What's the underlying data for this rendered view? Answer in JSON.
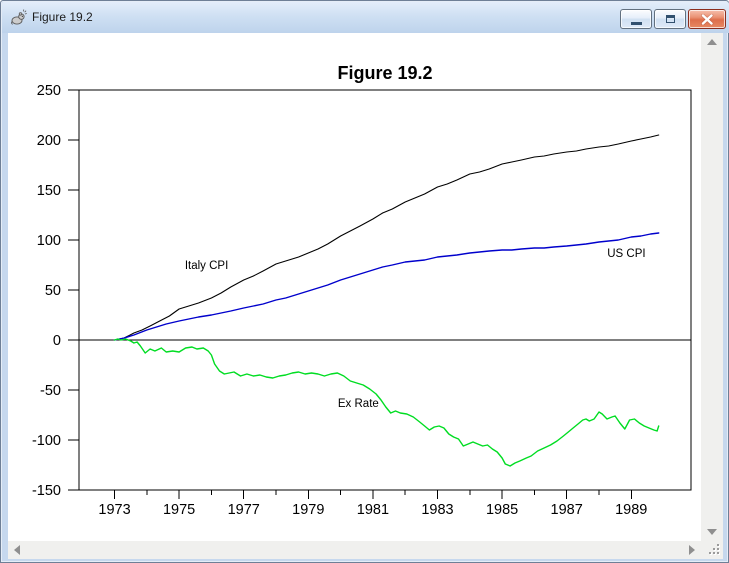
{
  "window": {
    "title": "Figure 19.2"
  },
  "icons": {
    "app": "rat-icon",
    "minimize": "minimize-dash",
    "restore": "restore-window-square",
    "close": "close-x",
    "scroll_up": "triangle-up",
    "scroll_down": "triangle-down",
    "scroll_left": "triangle-left",
    "scroll_right": "triangle-right",
    "resize_grip": "diagonal-dots"
  },
  "chart_data": {
    "type": "line",
    "title": "Figure 19.2",
    "xlim": [
      1971.9,
      1990.85
    ],
    "ylim": [
      -150,
      250
    ],
    "grid": false,
    "zero_line": true,
    "legend": "inline-labels",
    "x_axis": {
      "major_years": [
        1973,
        1975,
        1977,
        1979,
        1981,
        1983,
        1985,
        1987,
        1989
      ],
      "minor_years": [
        1974,
        1976,
        1978,
        1980,
        1982,
        1984,
        1986,
        1988
      ]
    },
    "y_axis": {
      "ticks": [
        250,
        200,
        150,
        100,
        50,
        0,
        -50,
        -100,
        -150
      ]
    },
    "series": [
      {
        "name": "Italy CPI",
        "color": "#000000",
        "width": 1.1,
        "label": {
          "x": 1975.85,
          "y": 71
        },
        "points": [
          [
            1973.0,
            0
          ],
          [
            1973.3,
            2
          ],
          [
            1973.6,
            7
          ],
          [
            1973.85,
            10
          ],
          [
            1974.1,
            14
          ],
          [
            1974.4,
            19
          ],
          [
            1974.7,
            24
          ],
          [
            1975.0,
            31
          ],
          [
            1975.3,
            34
          ],
          [
            1975.6,
            37
          ],
          [
            1976.0,
            42
          ],
          [
            1976.3,
            47
          ],
          [
            1976.6,
            53
          ],
          [
            1977.0,
            60
          ],
          [
            1977.3,
            64
          ],
          [
            1977.6,
            69
          ],
          [
            1978.0,
            76
          ],
          [
            1978.4,
            80
          ],
          [
            1978.7,
            83
          ],
          [
            1979.0,
            87
          ],
          [
            1979.3,
            91
          ],
          [
            1979.6,
            96
          ],
          [
            1980.0,
            104
          ],
          [
            1980.3,
            109
          ],
          [
            1980.6,
            114
          ],
          [
            1981.0,
            121
          ],
          [
            1981.3,
            127
          ],
          [
            1981.6,
            131
          ],
          [
            1982.0,
            138
          ],
          [
            1982.3,
            142
          ],
          [
            1982.6,
            146
          ],
          [
            1983.0,
            153
          ],
          [
            1983.3,
            156
          ],
          [
            1983.6,
            160
          ],
          [
            1984.0,
            166
          ],
          [
            1984.3,
            168
          ],
          [
            1984.6,
            171
          ],
          [
            1985.0,
            176
          ],
          [
            1985.3,
            178
          ],
          [
            1985.6,
            180
          ],
          [
            1986.0,
            183
          ],
          [
            1986.3,
            184
          ],
          [
            1986.6,
            186
          ],
          [
            1987.0,
            188
          ],
          [
            1987.3,
            189
          ],
          [
            1987.6,
            191
          ],
          [
            1988.0,
            193
          ],
          [
            1988.3,
            194
          ],
          [
            1988.6,
            196
          ],
          [
            1989.0,
            199
          ],
          [
            1989.3,
            201
          ],
          [
            1989.6,
            203
          ],
          [
            1989.85,
            205
          ]
        ]
      },
      {
        "name": "US CPI",
        "color": "#0000cc",
        "width": 1.4,
        "label": {
          "x": 1988.85,
          "y": 83
        },
        "points": [
          [
            1973.0,
            0
          ],
          [
            1973.3,
            2
          ],
          [
            1973.6,
            5
          ],
          [
            1974.0,
            10
          ],
          [
            1974.3,
            13
          ],
          [
            1974.6,
            16
          ],
          [
            1975.0,
            19
          ],
          [
            1975.3,
            21
          ],
          [
            1975.6,
            23
          ],
          [
            1976.0,
            25
          ],
          [
            1976.3,
            27
          ],
          [
            1976.6,
            29
          ],
          [
            1977.0,
            32
          ],
          [
            1977.3,
            34
          ],
          [
            1977.6,
            36
          ],
          [
            1978.0,
            40
          ],
          [
            1978.3,
            42
          ],
          [
            1978.6,
            45
          ],
          [
            1979.0,
            49
          ],
          [
            1979.3,
            52
          ],
          [
            1979.6,
            55
          ],
          [
            1980.0,
            60
          ],
          [
            1980.3,
            63
          ],
          [
            1980.6,
            66
          ],
          [
            1981.0,
            70
          ],
          [
            1981.3,
            73
          ],
          [
            1981.6,
            75
          ],
          [
            1982.0,
            78
          ],
          [
            1982.3,
            79
          ],
          [
            1982.6,
            80
          ],
          [
            1983.0,
            83
          ],
          [
            1983.3,
            84
          ],
          [
            1983.6,
            85
          ],
          [
            1984.0,
            87
          ],
          [
            1984.3,
            88
          ],
          [
            1984.6,
            89
          ],
          [
            1985.0,
            90
          ],
          [
            1985.3,
            90
          ],
          [
            1985.6,
            91
          ],
          [
            1986.0,
            92
          ],
          [
            1986.3,
            92
          ],
          [
            1986.6,
            93
          ],
          [
            1987.0,
            94
          ],
          [
            1987.3,
            95
          ],
          [
            1987.6,
            96
          ],
          [
            1988.0,
            98
          ],
          [
            1988.3,
            99
          ],
          [
            1988.6,
            100
          ],
          [
            1989.0,
            103
          ],
          [
            1989.3,
            104
          ],
          [
            1989.6,
            106
          ],
          [
            1989.85,
            107
          ]
        ]
      },
      {
        "name": "Ex Rate",
        "color": "#00dd22",
        "width": 1.4,
        "label": {
          "x": 1980.55,
          "y": -67
        },
        "points": [
          [
            1973.0,
            0
          ],
          [
            1973.1,
            1
          ],
          [
            1973.2,
            0
          ],
          [
            1973.35,
            1
          ],
          [
            1973.5,
            -1
          ],
          [
            1973.6,
            -3
          ],
          [
            1973.7,
            -2
          ],
          [
            1973.8,
            -6
          ],
          [
            1973.95,
            -13
          ],
          [
            1974.1,
            -9
          ],
          [
            1974.25,
            -11
          ],
          [
            1974.45,
            -8
          ],
          [
            1974.6,
            -12
          ],
          [
            1974.8,
            -11
          ],
          [
            1975.0,
            -12
          ],
          [
            1975.2,
            -8
          ],
          [
            1975.4,
            -7
          ],
          [
            1975.55,
            -9
          ],
          [
            1975.75,
            -8
          ],
          [
            1975.9,
            -11
          ],
          [
            1976.0,
            -15
          ],
          [
            1976.1,
            -24
          ],
          [
            1976.25,
            -31
          ],
          [
            1976.4,
            -34
          ],
          [
            1976.55,
            -33
          ],
          [
            1976.7,
            -32
          ],
          [
            1976.9,
            -36
          ],
          [
            1977.1,
            -34
          ],
          [
            1977.3,
            -36
          ],
          [
            1977.5,
            -35
          ],
          [
            1977.7,
            -37
          ],
          [
            1977.9,
            -38
          ],
          [
            1978.1,
            -36
          ],
          [
            1978.3,
            -35
          ],
          [
            1978.5,
            -33
          ],
          [
            1978.7,
            -32
          ],
          [
            1978.9,
            -34
          ],
          [
            1979.1,
            -33
          ],
          [
            1979.3,
            -34
          ],
          [
            1979.5,
            -36
          ],
          [
            1979.7,
            -34
          ],
          [
            1979.9,
            -33
          ],
          [
            1980.1,
            -36
          ],
          [
            1980.3,
            -41
          ],
          [
            1980.5,
            -43
          ],
          [
            1980.7,
            -45
          ],
          [
            1980.9,
            -49
          ],
          [
            1981.1,
            -54
          ],
          [
            1981.25,
            -60
          ],
          [
            1981.4,
            -67
          ],
          [
            1981.55,
            -73
          ],
          [
            1981.7,
            -71
          ],
          [
            1981.85,
            -73
          ],
          [
            1982.05,
            -74
          ],
          [
            1982.25,
            -77
          ],
          [
            1982.45,
            -82
          ],
          [
            1982.6,
            -86
          ],
          [
            1982.75,
            -90
          ],
          [
            1982.9,
            -87
          ],
          [
            1983.05,
            -86
          ],
          [
            1983.2,
            -88
          ],
          [
            1983.35,
            -94
          ],
          [
            1983.5,
            -97
          ],
          [
            1983.65,
            -99
          ],
          [
            1983.8,
            -106
          ],
          [
            1983.95,
            -104
          ],
          [
            1984.1,
            -102
          ],
          [
            1984.25,
            -104
          ],
          [
            1984.4,
            -106
          ],
          [
            1984.55,
            -105
          ],
          [
            1984.7,
            -109
          ],
          [
            1984.85,
            -112
          ],
          [
            1985.0,
            -118
          ],
          [
            1985.1,
            -124
          ],
          [
            1985.25,
            -126
          ],
          [
            1985.4,
            -123
          ],
          [
            1985.55,
            -121
          ],
          [
            1985.75,
            -118
          ],
          [
            1985.9,
            -116
          ],
          [
            1986.1,
            -111
          ],
          [
            1986.3,
            -108
          ],
          [
            1986.5,
            -105
          ],
          [
            1986.7,
            -101
          ],
          [
            1986.9,
            -96
          ],
          [
            1987.05,
            -92
          ],
          [
            1987.2,
            -88
          ],
          [
            1987.35,
            -84
          ],
          [
            1987.5,
            -80
          ],
          [
            1987.6,
            -79
          ],
          [
            1987.7,
            -81
          ],
          [
            1987.85,
            -79
          ],
          [
            1988.0,
            -72
          ],
          [
            1988.1,
            -74
          ],
          [
            1988.25,
            -79
          ],
          [
            1988.4,
            -77
          ],
          [
            1988.5,
            -76
          ],
          [
            1988.65,
            -83
          ],
          [
            1988.8,
            -89
          ],
          [
            1988.95,
            -80
          ],
          [
            1989.1,
            -79
          ],
          [
            1989.25,
            -83
          ],
          [
            1989.4,
            -86
          ],
          [
            1989.55,
            -88
          ],
          [
            1989.7,
            -90
          ],
          [
            1989.8,
            -91
          ],
          [
            1989.85,
            -86
          ]
        ]
      }
    ]
  }
}
